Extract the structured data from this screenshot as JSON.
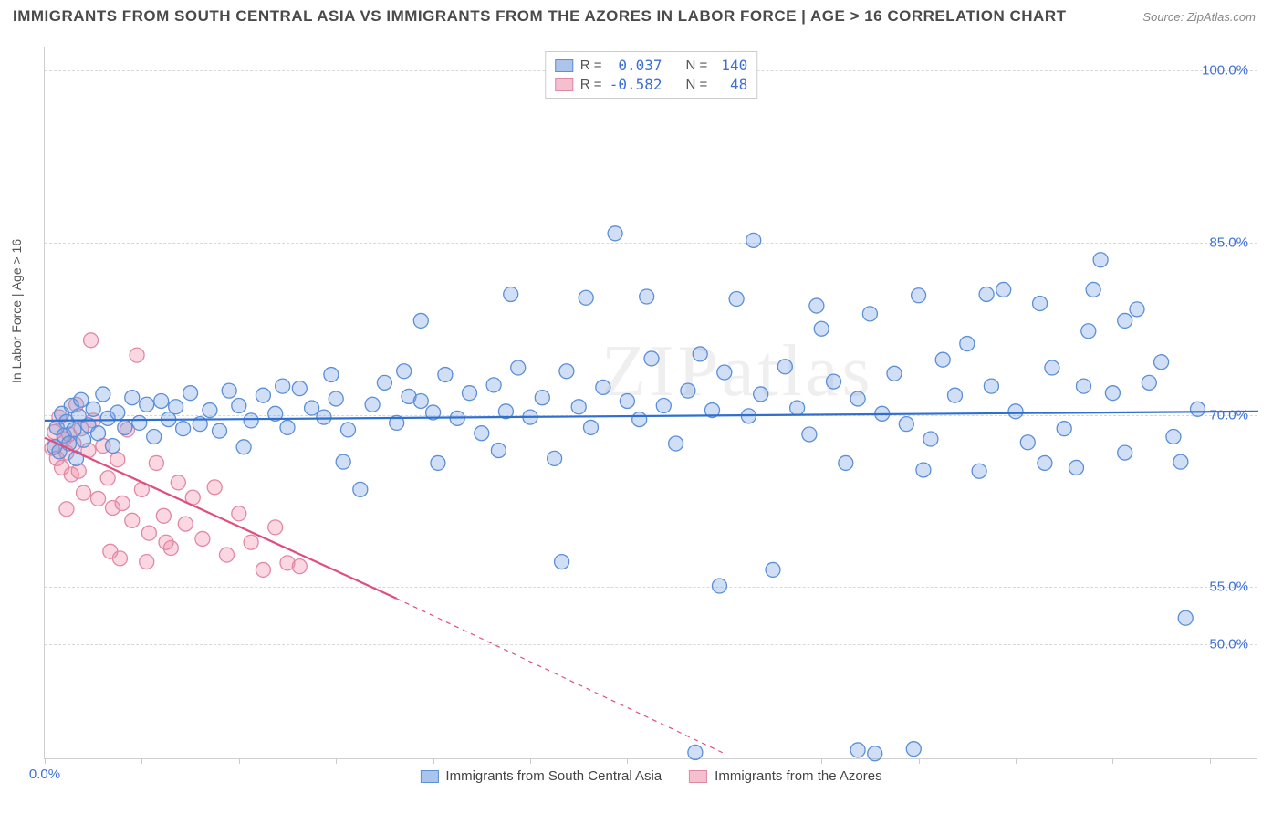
{
  "title": "IMMIGRANTS FROM SOUTH CENTRAL ASIA VS IMMIGRANTS FROM THE AZORES IN LABOR FORCE | AGE > 16 CORRELATION CHART",
  "source_label": "Source:",
  "source_name": "ZipAtlas.com",
  "y_axis_label": "In Labor Force | Age > 16",
  "watermark": "ZIPatlas",
  "chart": {
    "type": "scatter",
    "x_domain": [
      0,
      50
    ],
    "y_domain": [
      40,
      102
    ],
    "y_ticks": [
      {
        "v": 50.0,
        "label": "50.0%"
      },
      {
        "v": 55.0,
        "label": "55.0%"
      },
      {
        "v": 70.0,
        "label": "70.0%"
      },
      {
        "v": 85.0,
        "label": "85.0%"
      },
      {
        "v": 100.0,
        "label": "100.0%"
      }
    ],
    "x_tick_start_label": "0.0%",
    "x_tick_positions": [
      0,
      4,
      8,
      12,
      16,
      20,
      24,
      28,
      32,
      36,
      40,
      44,
      48
    ],
    "grid_h_color": "#d8d8d8",
    "marker_radius": 8,
    "marker_stroke_width": 1.3,
    "background_color": "#ffffff"
  },
  "series": [
    {
      "name": "Immigrants from South Central Asia",
      "color_fill": "rgba(120,160,230,0.35)",
      "color_stroke": "#5b8fd6",
      "swatch_fill": "#aac4ec",
      "swatch_border": "#5b8fd6",
      "R_label": "R =",
      "R": "0.037",
      "N_label": "N =",
      "N": "140",
      "regression": {
        "x1": 0,
        "y1": 69.5,
        "x2": 50,
        "y2": 70.3,
        "color": "#2f6fd0",
        "width": 2.2
      },
      "points": [
        [
          0.4,
          67.2
        ],
        [
          0.5,
          68.9
        ],
        [
          0.6,
          66.8
        ],
        [
          0.7,
          70.1
        ],
        [
          0.8,
          68.2
        ],
        [
          0.9,
          69.4
        ],
        [
          1.0,
          67.5
        ],
        [
          1.1,
          70.8
        ],
        [
          1.2,
          68.7
        ],
        [
          1.3,
          66.2
        ],
        [
          1.4,
          69.9
        ],
        [
          1.5,
          71.3
        ],
        [
          1.6,
          67.8
        ],
        [
          1.8,
          69.1
        ],
        [
          2.0,
          70.5
        ],
        [
          2.2,
          68.4
        ],
        [
          2.4,
          71.8
        ],
        [
          2.6,
          69.7
        ],
        [
          2.8,
          67.3
        ],
        [
          3.0,
          70.2
        ],
        [
          3.3,
          68.9
        ],
        [
          3.6,
          71.5
        ],
        [
          3.9,
          69.3
        ],
        [
          4.2,
          70.9
        ],
        [
          4.5,
          68.1
        ],
        [
          4.8,
          71.2
        ],
        [
          5.1,
          69.6
        ],
        [
          5.4,
          70.7
        ],
        [
          5.7,
          68.8
        ],
        [
          6.0,
          71.9
        ],
        [
          6.4,
          69.2
        ],
        [
          6.8,
          70.4
        ],
        [
          7.2,
          68.6
        ],
        [
          7.6,
          72.1
        ],
        [
          8.0,
          70.8
        ],
        [
          8.5,
          69.5
        ],
        [
          9.0,
          71.7
        ],
        [
          9.5,
          70.1
        ],
        [
          10.0,
          68.9
        ],
        [
          10.5,
          72.3
        ],
        [
          11.0,
          70.6
        ],
        [
          11.5,
          69.8
        ],
        [
          12.0,
          71.4
        ],
        [
          12.5,
          68.7
        ],
        [
          13.0,
          63.5
        ],
        [
          13.5,
          70.9
        ],
        [
          14.0,
          72.8
        ],
        [
          14.5,
          69.3
        ],
        [
          15.0,
          71.6
        ],
        [
          15.5,
          78.2
        ],
        [
          16.0,
          70.2
        ],
        [
          16.5,
          73.5
        ],
        [
          17.0,
          69.7
        ],
        [
          17.5,
          71.9
        ],
        [
          18.0,
          68.4
        ],
        [
          18.5,
          72.6
        ],
        [
          19.0,
          70.3
        ],
        [
          19.5,
          74.1
        ],
        [
          20.0,
          69.8
        ],
        [
          20.5,
          71.5
        ],
        [
          21.0,
          66.2
        ],
        [
          21.5,
          73.8
        ],
        [
          22.0,
          70.7
        ],
        [
          22.5,
          68.9
        ],
        [
          23.0,
          72.4
        ],
        [
          23.5,
          85.8
        ],
        [
          24.0,
          71.2
        ],
        [
          24.5,
          69.6
        ],
        [
          25.0,
          74.9
        ],
        [
          25.5,
          70.8
        ],
        [
          26.0,
          67.5
        ],
        [
          26.5,
          72.1
        ],
        [
          27.0,
          75.3
        ],
        [
          27.5,
          70.4
        ],
        [
          28.0,
          73.7
        ],
        [
          28.5,
          80.1
        ],
        [
          29.0,
          69.9
        ],
        [
          29.5,
          71.8
        ],
        [
          30.0,
          56.5
        ],
        [
          30.5,
          74.2
        ],
        [
          31.0,
          70.6
        ],
        [
          31.5,
          68.3
        ],
        [
          32.0,
          77.5
        ],
        [
          32.5,
          72.9
        ],
        [
          33.0,
          65.8
        ],
        [
          33.5,
          71.4
        ],
        [
          34.0,
          78.8
        ],
        [
          34.5,
          70.1
        ],
        [
          35.0,
          73.6
        ],
        [
          35.5,
          69.2
        ],
        [
          36.0,
          80.4
        ],
        [
          36.5,
          67.9
        ],
        [
          37.0,
          74.8
        ],
        [
          37.5,
          71.7
        ],
        [
          38.0,
          76.2
        ],
        [
          38.5,
          65.1
        ],
        [
          39.0,
          72.5
        ],
        [
          39.5,
          80.9
        ],
        [
          40.0,
          70.3
        ],
        [
          40.5,
          67.6
        ],
        [
          41.0,
          79.7
        ],
        [
          41.5,
          74.1
        ],
        [
          42.0,
          68.8
        ],
        [
          42.5,
          65.4
        ],
        [
          43.0,
          77.3
        ],
        [
          43.5,
          83.5
        ],
        [
          44.0,
          71.9
        ],
        [
          44.5,
          66.7
        ],
        [
          45.0,
          79.2
        ],
        [
          45.5,
          72.8
        ],
        [
          46.0,
          74.6
        ],
        [
          46.5,
          68.1
        ],
        [
          47.0,
          52.3
        ],
        [
          47.5,
          70.5
        ],
        [
          21.3,
          57.2
        ],
        [
          27.8,
          55.1
        ],
        [
          34.2,
          40.5
        ],
        [
          22.3,
          80.2
        ],
        [
          19.2,
          80.5
        ],
        [
          24.8,
          80.3
        ],
        [
          15.5,
          71.2
        ],
        [
          16.2,
          65.8
        ],
        [
          18.7,
          66.9
        ],
        [
          11.8,
          73.5
        ],
        [
          8.2,
          67.2
        ],
        [
          9.8,
          72.5
        ],
        [
          12.3,
          65.9
        ],
        [
          14.8,
          73.8
        ],
        [
          41.2,
          65.8
        ],
        [
          38.8,
          80.5
        ],
        [
          43.2,
          80.9
        ],
        [
          31.8,
          79.5
        ],
        [
          33.5,
          40.8
        ],
        [
          29.2,
          85.2
        ],
        [
          26.8,
          40.6
        ],
        [
          36.2,
          65.2
        ],
        [
          42.8,
          72.5
        ],
        [
          44.5,
          78.2
        ],
        [
          46.8,
          65.9
        ],
        [
          35.8,
          40.9
        ]
      ]
    },
    {
      "name": "Immigrants from the Azores",
      "color_fill": "rgba(240,140,170,0.35)",
      "color_stroke": "#e089a3",
      "swatch_fill": "#f4c0d0",
      "swatch_border": "#e089a3",
      "R_label": "R =",
      "R": "-0.582",
      "N_label": "N =",
      "N": "48",
      "regression": {
        "x1": 0,
        "y1": 68.0,
        "x2": 14.5,
        "y2": 54.0,
        "color": "#e04d7f",
        "width": 2.2,
        "dash_after_x": 14.5,
        "dash_y_at_end": 40.5,
        "dash_x_end": 28
      },
      "points": [
        [
          0.3,
          67.1
        ],
        [
          0.4,
          68.5
        ],
        [
          0.5,
          66.2
        ],
        [
          0.6,
          69.8
        ],
        [
          0.7,
          65.4
        ],
        [
          0.8,
          67.9
        ],
        [
          0.9,
          66.7
        ],
        [
          1.0,
          68.3
        ],
        [
          1.1,
          64.8
        ],
        [
          1.2,
          67.5
        ],
        [
          1.3,
          70.9
        ],
        [
          1.4,
          65.1
        ],
        [
          1.5,
          68.8
        ],
        [
          1.6,
          63.2
        ],
        [
          1.8,
          66.9
        ],
        [
          2.0,
          69.5
        ],
        [
          2.2,
          62.7
        ],
        [
          2.4,
          67.3
        ],
        [
          2.6,
          64.5
        ],
        [
          2.8,
          61.9
        ],
        [
          3.0,
          66.1
        ],
        [
          3.2,
          62.3
        ],
        [
          3.4,
          68.7
        ],
        [
          3.6,
          60.8
        ],
        [
          3.8,
          75.2
        ],
        [
          4.0,
          63.5
        ],
        [
          4.3,
          59.7
        ],
        [
          4.6,
          65.8
        ],
        [
          4.9,
          61.2
        ],
        [
          5.2,
          58.4
        ],
        [
          5.5,
          64.1
        ],
        [
          5.8,
          60.5
        ],
        [
          6.1,
          62.8
        ],
        [
          6.5,
          59.2
        ],
        [
          7.0,
          63.7
        ],
        [
          7.5,
          57.8
        ],
        [
          8.0,
          61.4
        ],
        [
          8.5,
          58.9
        ],
        [
          9.0,
          56.5
        ],
        [
          9.5,
          60.2
        ],
        [
          10.0,
          57.1
        ],
        [
          10.5,
          56.8
        ],
        [
          1.9,
          76.5
        ],
        [
          2.7,
          58.1
        ],
        [
          3.1,
          57.5
        ],
        [
          0.9,
          61.8
        ],
        [
          5.0,
          58.9
        ],
        [
          4.2,
          57.2
        ]
      ]
    }
  ]
}
